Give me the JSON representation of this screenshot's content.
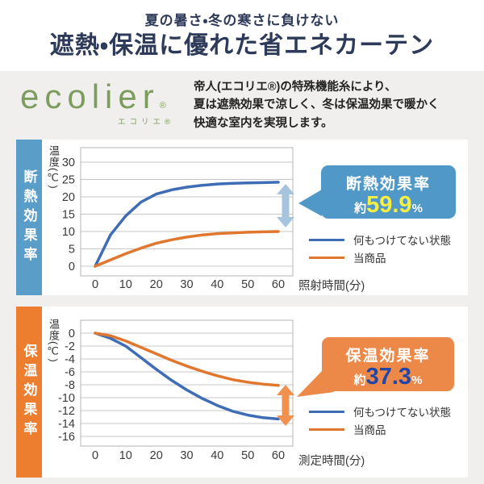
{
  "header": {
    "subtitle": "夏の暑さ・冬の寒さに負けない",
    "title": "遮熱・保温に優れた省エネカーテン"
  },
  "brand": {
    "logo": "ecolier",
    "logo_reg": "®",
    "logo_kana": "エコリエ®",
    "description_lines": [
      "帝人(エコリエ®)の特殊機能糸により、",
      "夏は遮熱効果で涼しく、冬は保温効果で暖かく",
      "快適な室内を実現します。"
    ]
  },
  "colors": {
    "page_bg": "#f0efed",
    "panel_bg": "#ffffff",
    "heading_navy": "#2e3a59",
    "logo_green": "#7d9d5f",
    "body_text": "#222222",
    "grid": "#c9c9c9",
    "axis_border": "#b5b5b5",
    "tick_text": "#3a3a3a",
    "line_blue": "#3f6db5",
    "line_orange": "#e0772f"
  },
  "chart_data": [
    {
      "type": "line",
      "section_label": "断熱効果率",
      "ylabel": "温度(℃)",
      "xlabel": "照射時間(分)",
      "x_ticks": [
        0,
        10,
        20,
        30,
        40,
        50,
        60
      ],
      "y_ticks": [
        30,
        25,
        20,
        15,
        10,
        5,
        0
      ],
      "xlim": [
        0,
        60
      ],
      "ylim": [
        0,
        30
      ],
      "grid": true,
      "legend_position": "right",
      "sidebar_color": "#5b9dc9",
      "arrow_color": "#a7c4de",
      "series": [
        {
          "name": "何もつけてない状態",
          "color": "#3f6db5",
          "x": [
            0,
            5,
            10,
            15,
            20,
            25,
            30,
            35,
            40,
            45,
            50,
            55,
            60
          ],
          "y": [
            0,
            9,
            14.5,
            18.5,
            20.8,
            22,
            22.8,
            23.3,
            23.7,
            23.9,
            24,
            24.1,
            24.2
          ]
        },
        {
          "name": "当商品",
          "color": "#e0772f",
          "x": [
            0,
            5,
            10,
            15,
            20,
            25,
            30,
            35,
            40,
            45,
            50,
            55,
            60
          ],
          "y": [
            0,
            1.8,
            3.6,
            5.2,
            6.6,
            7.6,
            8.4,
            9,
            9.4,
            9.6,
            9.8,
            9.9,
            10
          ]
        }
      ],
      "callout": {
        "label": "断熱効果率",
        "prefix": "約",
        "value": "59.9",
        "unit": "%",
        "bg": "#4f98c7",
        "value_color": "#f6ee44"
      }
    },
    {
      "type": "line",
      "section_label": "保温効果率",
      "ylabel": "温度(℃)",
      "xlabel": "測定時間(分)",
      "x_ticks": [
        0,
        10,
        20,
        30,
        40,
        50,
        60
      ],
      "y_ticks": [
        0,
        -2,
        -4,
        -6,
        -8,
        -10,
        -12,
        -14,
        -16
      ],
      "xlim": [
        0,
        60
      ],
      "ylim": [
        -16,
        0
      ],
      "grid": true,
      "legend_position": "right",
      "sidebar_color": "#ed7d2f",
      "arrow_color": "#f0914f",
      "series": [
        {
          "name": "何もつけてない状態",
          "color": "#3f6db5",
          "x": [
            0,
            5,
            10,
            15,
            20,
            25,
            30,
            35,
            40,
            45,
            50,
            55,
            60
          ],
          "y": [
            0,
            -0.8,
            -2,
            -3.8,
            -5.6,
            -7.3,
            -8.8,
            -10.1,
            -11.2,
            -12.1,
            -12.7,
            -13.1,
            -13.3
          ]
        },
        {
          "name": "当商品",
          "color": "#e0772f",
          "x": [
            0,
            5,
            10,
            15,
            20,
            25,
            30,
            35,
            40,
            45,
            50,
            55,
            60
          ],
          "y": [
            0,
            -0.4,
            -1.2,
            -2.2,
            -3.2,
            -4.2,
            -5.1,
            -5.9,
            -6.6,
            -7.2,
            -7.6,
            -7.9,
            -8.1
          ]
        }
      ],
      "callout": {
        "label": "保温効果率",
        "prefix": "約",
        "value": "37.3",
        "unit": "%",
        "bg": "#ec8848",
        "value_color": "#2146a8"
      }
    }
  ]
}
